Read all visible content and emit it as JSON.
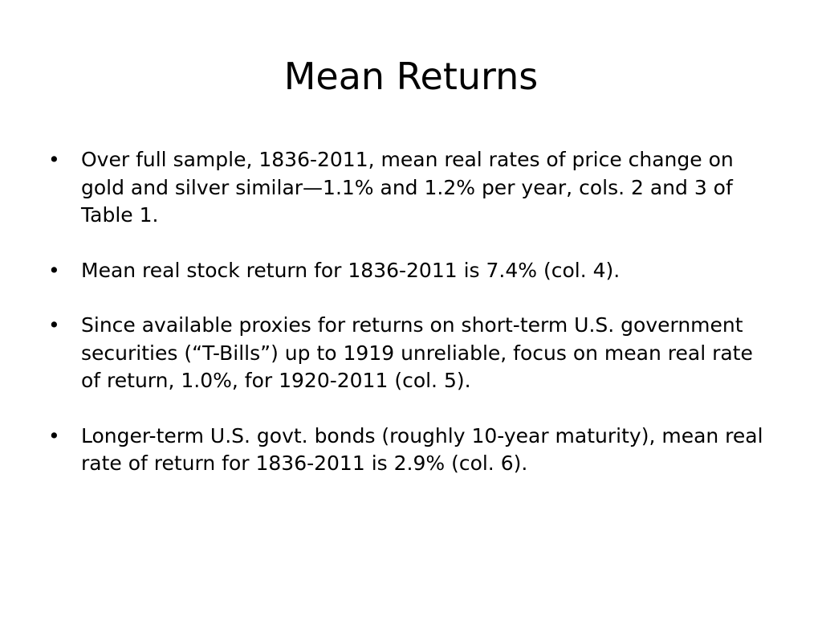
{
  "slide": {
    "title": "Mean Returns",
    "bullet_glyph": "•",
    "bullets": [
      "Over full sample, 1836-2011, mean real rates of price change on gold and silver similar—1.1% and 1.2% per year, cols. 2 and 3 of Table 1.",
      "Mean real stock return for 1836-2011 is 7.4% (col. 4).",
      "Since available proxies for returns on short-term U.S. government securities (“T-Bills”) up to 1919 unreliable, focus on mean real rate of return, 1.0%, for 1920-2011 (col. 5).",
      "Longer-term U.S. govt. bonds (roughly 10-year maturity), mean real rate of return for 1836-2011 is 2.9% (col. 6)."
    ]
  }
}
